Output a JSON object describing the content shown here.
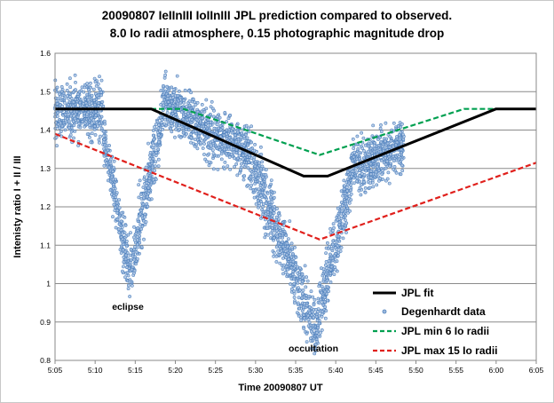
{
  "chart_data": {
    "type": "line",
    "title": "20090807 IeIInIII IoIInIII JPL prediction compared to observed.",
    "subtitle": "8.0 Io radii atmosphere, 0.15 photographic magnitude drop",
    "xlabel": "Time  20090807 UT",
    "ylabel": "Intenisty ratio I + II / III",
    "xlim": [
      "5:05",
      "6:05"
    ],
    "ylim": [
      0.8,
      1.6
    ],
    "x_ticks": [
      "5:05",
      "5:10",
      "5:15",
      "5:20",
      "5:25",
      "5:30",
      "5:35",
      "5:40",
      "5:45",
      "5:50",
      "5:55",
      "6:00",
      "6:05"
    ],
    "y_ticks": [
      "0.8",
      "0.9",
      "1",
      "1.1",
      "1.2",
      "1.3",
      "1.4",
      "1.5",
      "1.6"
    ],
    "grid": "horizontal",
    "legend_position": "bottom-right",
    "annotations": [
      {
        "text": "eclipse",
        "x": "5:15",
        "y": 0.93
      },
      {
        "text": "occultation",
        "x": "5:38",
        "y": 0.82
      }
    ],
    "series": [
      {
        "name": "JPL fit",
        "style": "solid",
        "color": "#000000",
        "x": [
          "5:05",
          "5:17",
          "5:36",
          "5:39",
          "6:00",
          "6:05"
        ],
        "y": [
          1.455,
          1.455,
          1.28,
          1.28,
          1.455,
          1.455
        ]
      },
      {
        "name": "Degenhardt data",
        "style": "markers",
        "color": "#4f81bd",
        "segments": [
          {
            "x_range": [
              "5:05",
              "5:11"
            ],
            "y_center": 1.45,
            "spread": 0.06
          },
          {
            "x_range": [
              "5:11",
              "5:14.3"
            ],
            "y_start": 1.4,
            "y_end": 1.02,
            "spread": 0.06
          },
          {
            "x_range": [
              "5:14.3",
              "5:18.5"
            ],
            "y_start": 1.02,
            "y_end": 1.45,
            "spread": 0.07
          },
          {
            "x_range": [
              "5:18.5",
              "5:29"
            ],
            "y_start": 1.47,
            "y_end": 1.34,
            "spread": 0.06
          },
          {
            "x_range": [
              "5:29",
              "5:37.5"
            ],
            "y_start": 1.34,
            "y_end": 0.88,
            "spread": 0.07
          },
          {
            "x_range": [
              "5:37.5",
              "5:42.5"
            ],
            "y_start": 0.88,
            "y_end": 1.33,
            "spread": 0.07
          },
          {
            "x_range": [
              "5:42.5",
              "5:48.5"
            ],
            "y_start": 1.3,
            "y_end": 1.36,
            "spread": 0.06
          }
        ]
      },
      {
        "name": "JPL min 6 Io radii",
        "style": "dashed",
        "color": "#00a050",
        "x": [
          "5:05",
          "5:21",
          "5:38",
          "5:56",
          "6:05"
        ],
        "y": [
          1.455,
          1.455,
          1.335,
          1.455,
          1.455
        ]
      },
      {
        "name": "JPL max 15 Io radii",
        "style": "dashed",
        "color": "#e0201c",
        "x": [
          "5:05",
          "5:38",
          "6:05"
        ],
        "y": [
          1.39,
          1.115,
          1.315
        ]
      }
    ]
  }
}
